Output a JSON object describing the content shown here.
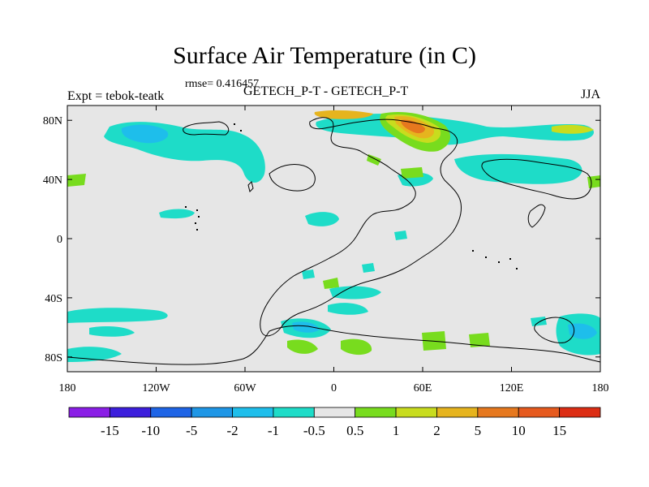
{
  "title": "Surface Air Temperature (in C)",
  "rmse_label": "rmse= 0.416457",
  "left_label": "Expt = tebok-teatk",
  "center_label": "GETECH_P-T - GETECH_P-T",
  "right_label": "JJA",
  "map": {
    "lon_range": [
      -180,
      180
    ],
    "lat_range": [
      -90,
      90
    ],
    "x_ticks": [
      {
        "value": -180,
        "label": "180"
      },
      {
        "value": -120,
        "label": "120W"
      },
      {
        "value": -60,
        "label": "60W"
      },
      {
        "value": 0,
        "label": "0"
      },
      {
        "value": 60,
        "label": "60E"
      },
      {
        "value": 120,
        "label": "120E"
      },
      {
        "value": 180,
        "label": "180"
      }
    ],
    "y_ticks": [
      {
        "value": 80,
        "label": "80N"
      },
      {
        "value": 40,
        "label": "40N"
      },
      {
        "value": 0,
        "label": "0"
      },
      {
        "value": -40,
        "label": "40S"
      },
      {
        "value": -80,
        "label": "80S"
      }
    ],
    "background_color": "#e6e6e6"
  },
  "colorbar": {
    "labels": [
      "-15",
      "-10",
      "-5",
      "-2",
      "-1",
      "-0.5",
      "0.5",
      "1",
      "2",
      "5",
      "10",
      "15"
    ],
    "colors": [
      "#8a1ee6",
      "#3c1edc",
      "#1e64e6",
      "#1e96e6",
      "#1ebeeb",
      "#1edcc8",
      "#e6e6e6",
      "#78dc1e",
      "#c8dc1e",
      "#e6b41e",
      "#e6781e",
      "#e65a1e",
      "#dc2d14"
    ]
  },
  "colors": {
    "cyan": "#1edcc8",
    "light_blue": "#1ebeeb",
    "blue": "#1e96e6",
    "green": "#78dc1e",
    "yellow": "#c8dc1e",
    "orange": "#e6b41e",
    "dark_orange": "#e6781e"
  }
}
